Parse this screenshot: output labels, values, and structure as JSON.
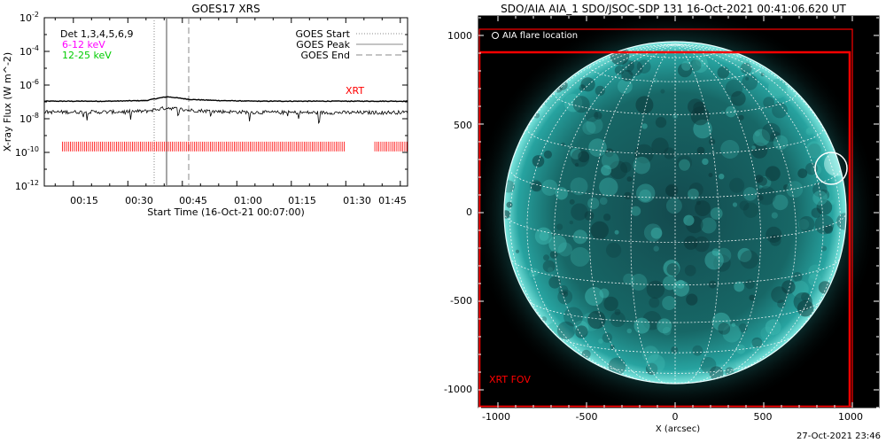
{
  "chart_data": [
    {
      "type": "line",
      "title": "GOES17 XRS",
      "xlabel": "Start Time (16-Oct-21 00:07:00)",
      "ylabel": "X-ray Flux (W m^-2)",
      "y_scale": "log",
      "ylim": [
        1e-12,
        0.01
      ],
      "xlim_minutes": [
        7,
        107
      ],
      "x_tick_labels": [
        "00:15",
        "00:30",
        "00:45",
        "01:00",
        "01:15",
        "01:30",
        "01:45"
      ],
      "y_tick_labels": [
        {
          "base": "10",
          "exp": "-12"
        },
        {
          "base": "10",
          "exp": "-10"
        },
        {
          "base": "10",
          "exp": "-8"
        },
        {
          "base": "10",
          "exp": "-6"
        },
        {
          "base": "10",
          "exp": "-4"
        },
        {
          "base": "10",
          "exp": "-2"
        }
      ],
      "annotations": {
        "detectors": "Det 1,3,4,5,6,9",
        "band_1": "6-12 keV",
        "band_2": "12-25 keV",
        "band_1_color": "#ff00ff",
        "band_2_color": "#00cc00",
        "xrt_label": "XRT",
        "xrt_color": "#ff0000"
      },
      "legend": {
        "position": "top-right",
        "entries": [
          "GOES Start",
          "GOES Peak",
          "GOES End"
        ]
      },
      "event_times": {
        "goes_start": "00:37",
        "goes_peak": "00:41",
        "goes_end": "00:47"
      },
      "series": [
        {
          "name": "",
          "x": [
            "00:07",
            "00:15",
            "00:25",
            "00:35",
            "00:38",
            "00:40",
            "00:41",
            "00:43",
            "00:47",
            "00:55",
            "01:05",
            "01:20",
            "01:35",
            "01:47"
          ],
          "y": [
            1.1e-07,
            1.1e-07,
            1.1e-07,
            1.2e-07,
            1.6e-07,
            1.9e-07,
            2e-07,
            1.8e-07,
            1.4e-07,
            1.2e-07,
            1.1e-07,
            1.1e-07,
            1.1e-07,
            1.1e-07
          ]
        },
        {
          "name": "",
          "x": [
            "00:07",
            "00:15",
            "00:25",
            "00:35",
            "00:38",
            "00:40",
            "00:41",
            "00:43",
            "00:47",
            "00:55",
            "01:05",
            "01:20",
            "01:35",
            "01:47"
          ],
          "y": [
            2.5e-08,
            2.5e-08,
            2.5e-08,
            2.8e-08,
            3.6e-08,
            4.2e-08,
            4.5e-08,
            4e-08,
            3.2e-08,
            2.7e-08,
            2.4e-08,
            2.3e-08,
            2.3e-08,
            2.4e-08
          ]
        }
      ],
      "xrt_coverage": [
        [
          "00:12",
          "01:30"
        ],
        [
          "01:38",
          "01:47"
        ]
      ]
    },
    {
      "type": "image",
      "title": "SDO/AIA AIA_1 SDO/JSOC-SDP 131 16-Oct-2021 00:41:06.620 UT",
      "xlabel": "X (arcsec)",
      "x_ticks": [
        -1000,
        -500,
        0,
        500,
        1000
      ],
      "y_ticks": [
        1000,
        500,
        0,
        -500,
        -1000
      ],
      "xlim": [
        -1150,
        1150
      ],
      "ylim": [
        -1150,
        1100
      ],
      "legend_label": "AIA flare location",
      "fov_label": "XRT FOV",
      "fov_color": "#ff0000",
      "flare_location_arcsec": [
        910,
        275
      ],
      "disk_color": "#1ea4a0"
    }
  ],
  "footer": {
    "timestamp": "27-Oct-2021 23:46"
  }
}
